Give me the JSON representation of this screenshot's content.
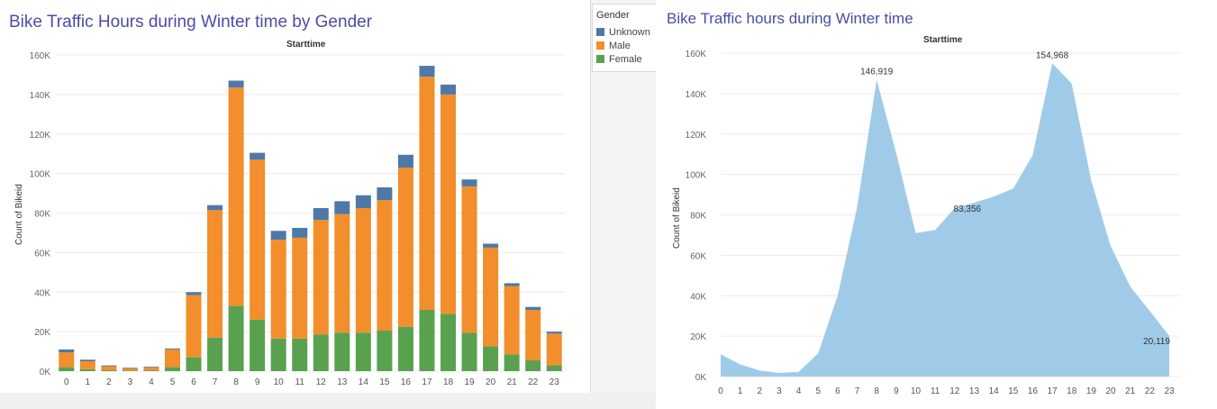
{
  "chart_data": [
    {
      "type": "bar",
      "stacked": true,
      "title": "Bike Traffic Hours during Winter time by Gender",
      "subtitle": "Starttime",
      "xlabel": "",
      "ylabel": "Count of Bikeid",
      "ylim": [
        0,
        160000
      ],
      "y_ticks": [
        "0K",
        "20K",
        "40K",
        "60K",
        "80K",
        "100K",
        "120K",
        "140K",
        "160K"
      ],
      "grid": true,
      "legend_title": "Gender",
      "legend_position": "right",
      "categories": [
        "0",
        "1",
        "2",
        "3",
        "4",
        "5",
        "6",
        "7",
        "8",
        "9",
        "10",
        "11",
        "12",
        "13",
        "14",
        "15",
        "16",
        "17",
        "18",
        "19",
        "20",
        "21",
        "22",
        "23"
      ],
      "series": [
        {
          "name": "Female",
          "color": "#59a14f",
          "values": [
            2000,
            1000,
            500,
            300,
            400,
            2000,
            7000,
            17000,
            33000,
            26000,
            16500,
            16500,
            18500,
            19500,
            19500,
            20500,
            22500,
            31000,
            29000,
            19500,
            12500,
            8500,
            5500,
            3000
          ]
        },
        {
          "name": "Male",
          "color": "#f28e2b",
          "values": [
            7500,
            4000,
            2000,
            1200,
            1600,
            9000,
            31500,
            64500,
            110500,
            81000,
            50000,
            51000,
            58000,
            60000,
            63000,
            66000,
            80500,
            118000,
            111000,
            74000,
            50000,
            34500,
            25500,
            16000
          ]
        },
        {
          "name": "Unknown",
          "color": "#4e79a7",
          "values": [
            1500,
            800,
            400,
            300,
            300,
            500,
            1500,
            2500,
            3500,
            3500,
            4500,
            5000,
            6000,
            6500,
            6500,
            6500,
            6500,
            5500,
            5000,
            3500,
            2000,
            1500,
            1500,
            1000
          ]
        }
      ]
    },
    {
      "type": "area",
      "title": "Bike Traffic hours during Winter time",
      "subtitle": "Starttime",
      "xlabel": "",
      "ylabel": "Count of Bikeid",
      "ylim": [
        0,
        160000
      ],
      "y_ticks": [
        "0K",
        "20K",
        "40K",
        "60K",
        "80K",
        "100K",
        "120K",
        "140K",
        "160K"
      ],
      "grid": true,
      "color": "#a0cbe8",
      "x": [
        "0",
        "1",
        "2",
        "3",
        "4",
        "5",
        "6",
        "7",
        "8",
        "9",
        "10",
        "11",
        "12",
        "13",
        "14",
        "15",
        "16",
        "17",
        "18",
        "19",
        "20",
        "21",
        "22",
        "23"
      ],
      "values": [
        11000,
        6000,
        3000,
        1800,
        2300,
        11500,
        40000,
        84000,
        146919,
        110500,
        71000,
        72500,
        83356,
        86000,
        89000,
        93000,
        109500,
        154968,
        145000,
        97000,
        64500,
        44500,
        32500,
        20119
      ],
      "annotations": [
        {
          "index": 8,
          "text": "146,919"
        },
        {
          "index": 12,
          "text": "83,356"
        },
        {
          "index": 17,
          "text": "154,968"
        },
        {
          "index": 23,
          "text": "20,119"
        }
      ]
    }
  ]
}
